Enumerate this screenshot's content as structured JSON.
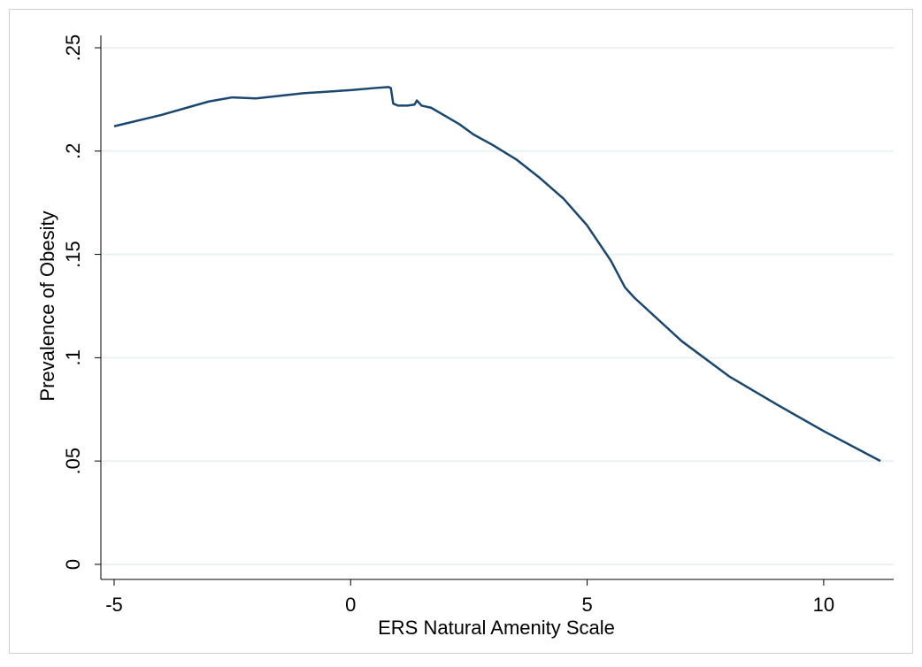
{
  "chart_data": {
    "type": "line",
    "xlabel": "ERS Natural Amenity Scale",
    "ylabel": "Prevalence of Obesity",
    "x": [
      -5,
      -4,
      -3,
      -2.5,
      -2,
      -1,
      0,
      0.5,
      0.8,
      0.85,
      0.9,
      1.0,
      1.2,
      1.35,
      1.4,
      1.5,
      1.7,
      2,
      2.3,
      2.6,
      3,
      3.5,
      4,
      4.5,
      5,
      5.5,
      5.8,
      6,
      7,
      8,
      9,
      10,
      11.2
    ],
    "series": [
      {
        "name": "Prevalence of Obesity",
        "color": "#1a476f",
        "values": [
          0.212,
          0.2175,
          0.224,
          0.226,
          0.2255,
          0.228,
          0.2295,
          0.2305,
          0.231,
          0.2305,
          0.223,
          0.222,
          0.222,
          0.2225,
          0.2245,
          0.222,
          0.221,
          0.217,
          0.213,
          0.208,
          0.203,
          0.196,
          0.187,
          0.177,
          0.164,
          0.147,
          0.134,
          0.129,
          0.108,
          0.091,
          0.0775,
          0.0645,
          0.05
        ]
      }
    ],
    "xlim": [
      -5.28,
      11.48
    ],
    "ylim": [
      -0.0073,
      0.256
    ],
    "xticks": [
      -5,
      0,
      5,
      10
    ],
    "yticks": [
      0,
      {
        "value": 0.05,
        "label": ".05"
      },
      {
        "value": 0.1,
        "label": ".1"
      },
      {
        "value": 0.15,
        "label": ".15"
      },
      {
        "value": 0.2,
        "label": ".2"
      },
      {
        "value": 0.25,
        "label": ".25"
      }
    ],
    "grid": true
  }
}
